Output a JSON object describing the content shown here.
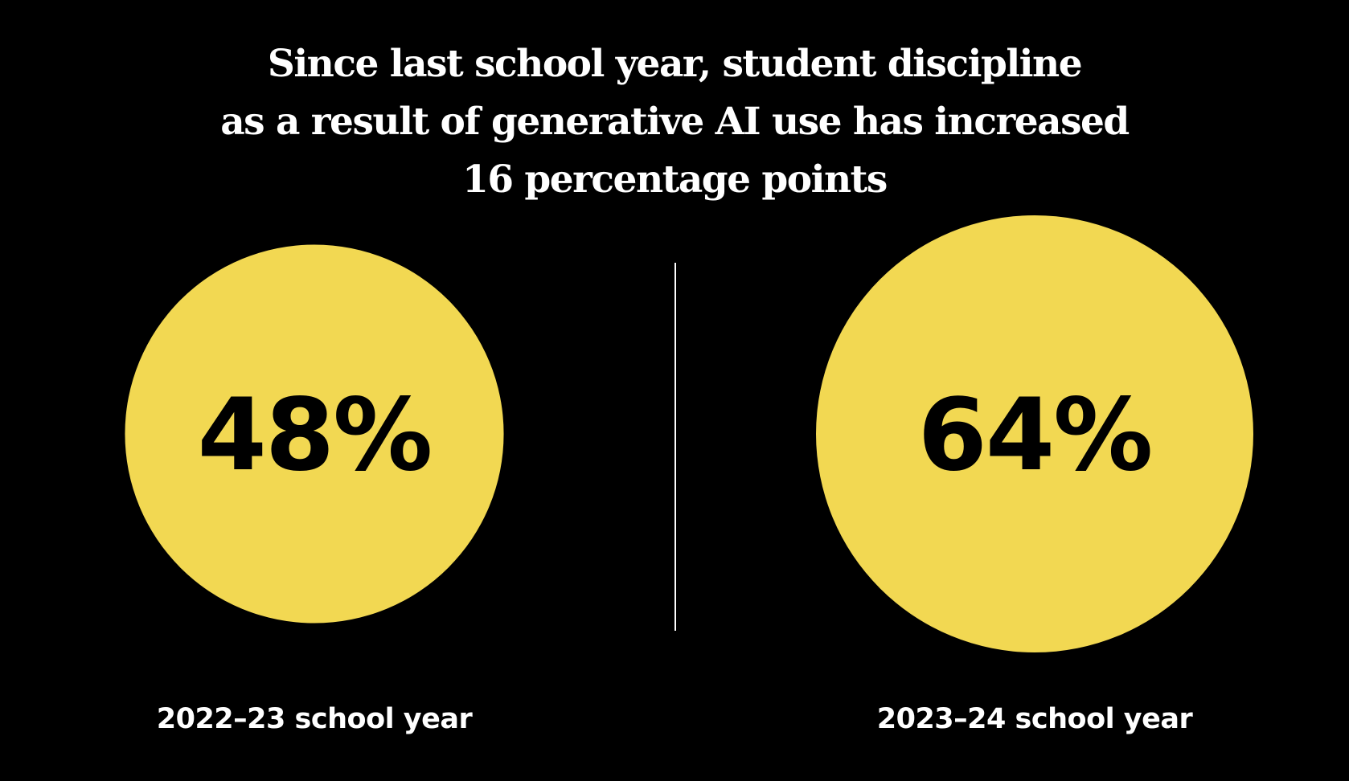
{
  "title_lines": [
    "Since last school year, student discipline",
    "as a result of generative AI use has increased",
    "16 percentage points"
  ],
  "colors": {
    "background": "#000000",
    "circle": "#F2D852",
    "text_on_circle": "#000000",
    "title_text": "#FFFFFF",
    "divider": "#FFFFFF"
  },
  "chart_data": {
    "type": "bubble",
    "title": "Since last school year, student discipline as a result of generative AI use has increased 16 percentage points",
    "categories": [
      "2022–23 school year",
      "2023–24 school year"
    ],
    "values": [
      48,
      64
    ],
    "value_labels": [
      "48%",
      "64%"
    ],
    "unit": "%",
    "annotation": "16 percentage points"
  }
}
